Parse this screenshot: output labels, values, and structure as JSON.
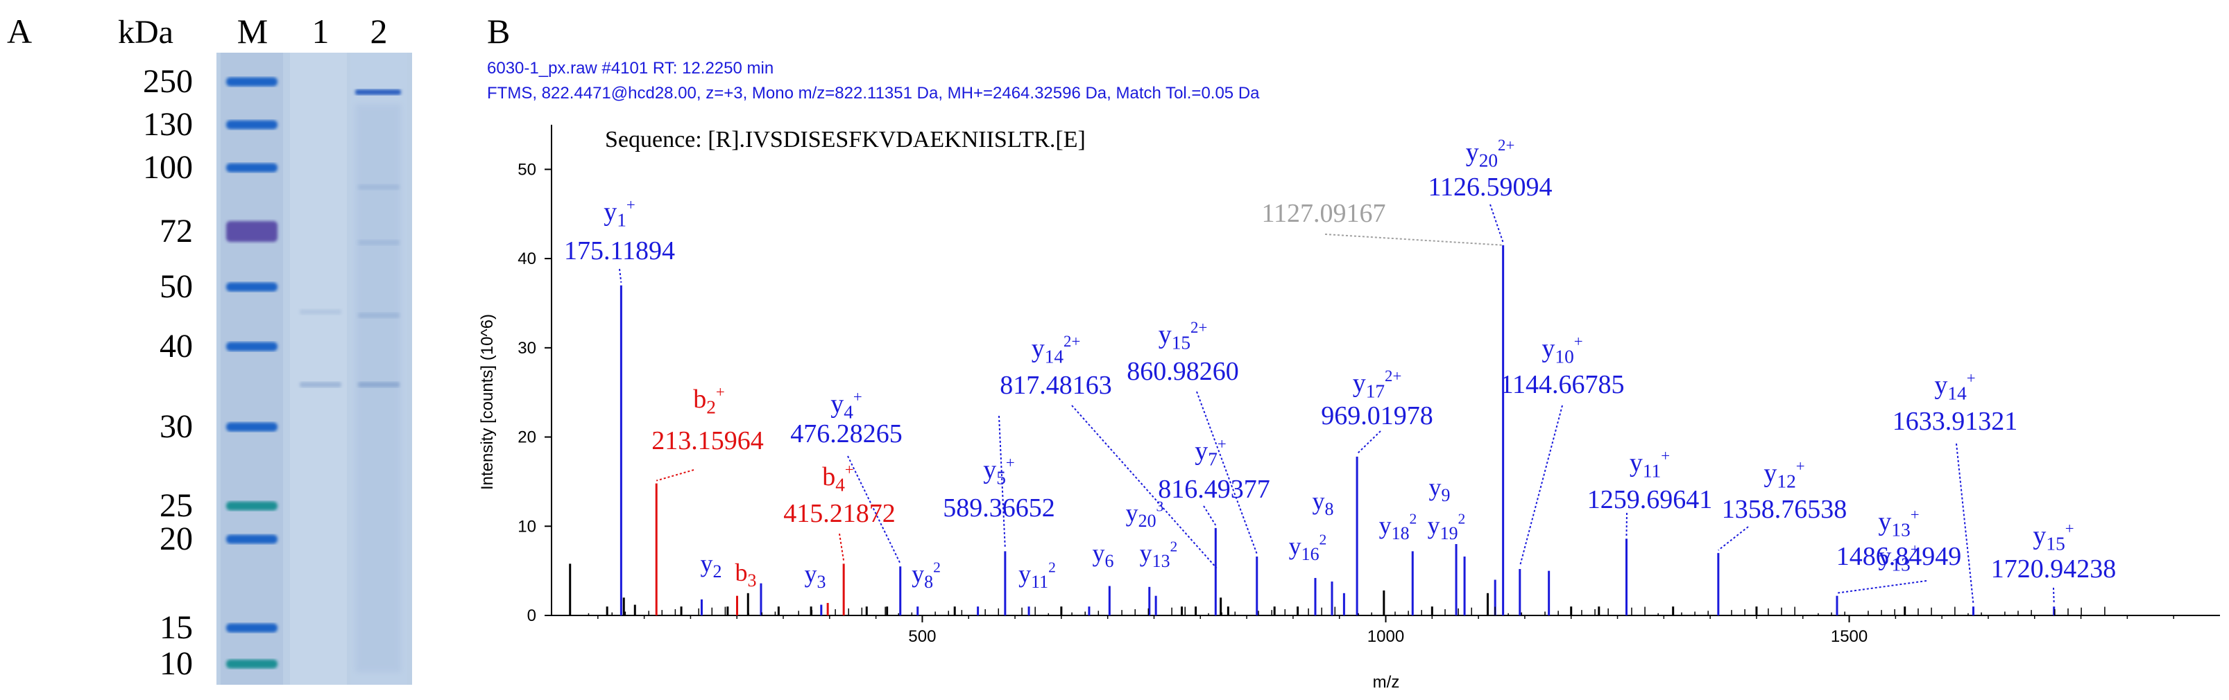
{
  "panel_a": {
    "letter": "A",
    "unit": "kDa",
    "lane_labels": [
      "M",
      "1",
      "2"
    ],
    "markers": [
      {
        "label": "250",
        "kda": 250
      },
      {
        "label": "130",
        "kda": 130
      },
      {
        "label": "100",
        "kda": 100
      },
      {
        "label": "72",
        "kda": 72
      },
      {
        "label": "50",
        "kda": 50
      },
      {
        "label": "40",
        "kda": 40
      },
      {
        "label": "30",
        "kda": 30
      },
      {
        "label": "25",
        "kda": 25
      },
      {
        "label": "20",
        "kda": 20
      },
      {
        "label": "15",
        "kda": 15
      },
      {
        "label": "10",
        "kda": 10
      }
    ],
    "colors": {
      "gel": "#b9cfe6",
      "band": "#1f63c6",
      "band_purple": "#5c4fa8",
      "band_teal": "#1d8f94"
    }
  },
  "panel_b": {
    "letter": "B",
    "header_line1": "6030-1_px.raw  #4101  RT: 12.2250 min",
    "header_line2": "FTMS, 822.4471@hcd28.00, z=+3, Mono m/z=822.11351 Da, MH+=2464.32596 Da, Match Tol.=0.05 Da",
    "sequence": "Sequence: [R].IVSDISESFKVDAEKNIISLTR.[E]",
    "colors": {
      "y_ion": "#1a1adb",
      "b_ion": "#e01010",
      "unmatched": "#000000",
      "grey": "#a0a0a0",
      "header": "#1a1adb"
    }
  },
  "chart_data": {
    "type": "bar",
    "title": "",
    "xlabel": "m/z",
    "ylabel": "Intensity [counts] (10^6)",
    "xlim": [
      100,
      1900
    ],
    "ylim": [
      0,
      55
    ],
    "xticks": [
      500,
      1000,
      1500
    ],
    "yticks": [
      0,
      10,
      20,
      30,
      40,
      50
    ],
    "grid": false,
    "peaks": [
      {
        "x": 120,
        "y": 5.8,
        "ion": "none"
      },
      {
        "x": 160,
        "y": 1.0,
        "ion": "none"
      },
      {
        "x": 175.12,
        "y": 37.0,
        "ion": "y"
      },
      {
        "x": 178,
        "y": 2.0,
        "ion": "none"
      },
      {
        "x": 190,
        "y": 1.2,
        "ion": "none"
      },
      {
        "x": 213.16,
        "y": 14.8,
        "ion": "b"
      },
      {
        "x": 240,
        "y": 1.0,
        "ion": "none"
      },
      {
        "x": 262,
        "y": 1.8,
        "ion": "y"
      },
      {
        "x": 290,
        "y": 1.0,
        "ion": "none"
      },
      {
        "x": 300.2,
        "y": 2.2,
        "ion": "b"
      },
      {
        "x": 312,
        "y": 2.5,
        "ion": "none"
      },
      {
        "x": 326,
        "y": 3.6,
        "ion": "y"
      },
      {
        "x": 345,
        "y": 1.0,
        "ion": "none"
      },
      {
        "x": 380,
        "y": 1.0,
        "ion": "none"
      },
      {
        "x": 391,
        "y": 1.2,
        "ion": "y"
      },
      {
        "x": 398,
        "y": 1.4,
        "ion": "b"
      },
      {
        "x": 415.22,
        "y": 5.8,
        "ion": "b"
      },
      {
        "x": 440,
        "y": 1.0,
        "ion": "none"
      },
      {
        "x": 462,
        "y": 1.0,
        "ion": "none"
      },
      {
        "x": 476.28,
        "y": 5.5,
        "ion": "y"
      },
      {
        "x": 495,
        "y": 1.0,
        "ion": "y"
      },
      {
        "x": 535,
        "y": 1.0,
        "ion": "none"
      },
      {
        "x": 560,
        "y": 1.0,
        "ion": "y"
      },
      {
        "x": 589.37,
        "y": 7.2,
        "ion": "y"
      },
      {
        "x": 615,
        "y": 1.0,
        "ion": "y"
      },
      {
        "x": 650,
        "y": 1.0,
        "ion": "none"
      },
      {
        "x": 680,
        "y": 1.0,
        "ion": "y"
      },
      {
        "x": 702,
        "y": 3.3,
        "ion": "y"
      },
      {
        "x": 745,
        "y": 3.2,
        "ion": "y"
      },
      {
        "x": 752,
        "y": 2.2,
        "ion": "y"
      },
      {
        "x": 780,
        "y": 1.0,
        "ion": "none"
      },
      {
        "x": 795,
        "y": 1.0,
        "ion": "none"
      },
      {
        "x": 816.49,
        "y": 9.8,
        "ion": "y"
      },
      {
        "x": 822,
        "y": 2.0,
        "ion": "none"
      },
      {
        "x": 830,
        "y": 1.0,
        "ion": "none"
      },
      {
        "x": 860.98,
        "y": 6.6,
        "ion": "y"
      },
      {
        "x": 880,
        "y": 1.0,
        "ion": "none"
      },
      {
        "x": 905,
        "y": 1.0,
        "ion": "none"
      },
      {
        "x": 924,
        "y": 4.2,
        "ion": "y"
      },
      {
        "x": 942,
        "y": 3.8,
        "ion": "y"
      },
      {
        "x": 955,
        "y": 2.5,
        "ion": "y"
      },
      {
        "x": 969.02,
        "y": 17.8,
        "ion": "y"
      },
      {
        "x": 998,
        "y": 2.8,
        "ion": "none"
      },
      {
        "x": 1029,
        "y": 7.2,
        "ion": "y"
      },
      {
        "x": 1050,
        "y": 1.0,
        "ion": "none"
      },
      {
        "x": 1076,
        "y": 8.0,
        "ion": "y"
      },
      {
        "x": 1085,
        "y": 6.6,
        "ion": "y"
      },
      {
        "x": 1110,
        "y": 2.5,
        "ion": "none"
      },
      {
        "x": 1118,
        "y": 4.0,
        "ion": "y"
      },
      {
        "x": 1126.59,
        "y": 41.5,
        "ion": "y"
      },
      {
        "x": 1144.67,
        "y": 5.2,
        "ion": "y"
      },
      {
        "x": 1176,
        "y": 5.0,
        "ion": "y"
      },
      {
        "x": 1200,
        "y": 1.0,
        "ion": "none"
      },
      {
        "x": 1230,
        "y": 1.0,
        "ion": "none"
      },
      {
        "x": 1259.7,
        "y": 8.6,
        "ion": "y"
      },
      {
        "x": 1310,
        "y": 1.0,
        "ion": "none"
      },
      {
        "x": 1358.77,
        "y": 7.0,
        "ion": "y"
      },
      {
        "x": 1400,
        "y": 1.0,
        "ion": "none"
      },
      {
        "x": 1486.85,
        "y": 2.2,
        "ion": "y"
      },
      {
        "x": 1560,
        "y": 1.0,
        "ion": "none"
      },
      {
        "x": 1633.91,
        "y": 1.0,
        "ion": "y"
      },
      {
        "x": 1720.94,
        "y": 1.0,
        "ion": "y"
      }
    ],
    "annotations": [
      {
        "ion": "y",
        "base": "y",
        "sub": "1",
        "sup": "+",
        "mz": "175.11894",
        "peak_x": 175.12,
        "peak_y": 37.0
      },
      {
        "ion": "b",
        "base": "b",
        "sub": "2",
        "sup": "+",
        "mz": "213.15964",
        "peak_x": 213.16,
        "peak_y": 14.8
      },
      {
        "ion": "y",
        "base": "y",
        "sub": "4",
        "sup": "+",
        "mz": "476.28265",
        "peak_x": 476.28,
        "peak_y": 5.5
      },
      {
        "ion": "b",
        "base": "b",
        "sub": "4",
        "sup": "+",
        "mz": "415.21872",
        "peak_x": 415.22,
        "peak_y": 5.8
      },
      {
        "ion": "y",
        "base": "y",
        "sub": "5",
        "sup": "+",
        "mz": "589.36652",
        "peak_x": 589.37,
        "peak_y": 7.2
      },
      {
        "ion": "y",
        "base": "y",
        "sub": "14",
        "sup": "2+",
        "mz": "817.48163",
        "peak_x": 817.48,
        "peak_y": 5.0
      },
      {
        "ion": "y",
        "base": "y",
        "sub": "15",
        "sup": "2+",
        "mz": "860.98260",
        "peak_x": 860.98,
        "peak_y": 6.6
      },
      {
        "ion": "y",
        "base": "y",
        "sub": "7",
        "sup": "+",
        "mz": "816.49377",
        "peak_x": 816.49,
        "peak_y": 9.8
      },
      {
        "ion": "y",
        "base": "y",
        "sub": "17",
        "sup": "2+",
        "mz": "969.01978",
        "peak_x": 969.02,
        "peak_y": 17.8
      },
      {
        "ion": "y",
        "base": "y",
        "sub": "20",
        "sup": "2+",
        "mz": "1126.59094",
        "peak_x": 1126.59,
        "peak_y": 41.5
      },
      {
        "ion": "grey",
        "base": "",
        "sub": "",
        "sup": "",
        "mz": "1127.09167",
        "peak_x": 1127.09,
        "peak_y": 41.5
      },
      {
        "ion": "y",
        "base": "y",
        "sub": "10",
        "sup": "+",
        "mz": "1144.66785",
        "peak_x": 1144.67,
        "peak_y": 5.2
      },
      {
        "ion": "y",
        "base": "y",
        "sub": "11",
        "sup": "+",
        "mz": "1259.69641",
        "peak_x": 1259.7,
        "peak_y": 8.6
      },
      {
        "ion": "y",
        "base": "y",
        "sub": "12",
        "sup": "+",
        "mz": "1358.76538",
        "peak_x": 1358.77,
        "peak_y": 7.0
      },
      {
        "ion": "y",
        "base": "y",
        "sub": "13",
        "sup": "+",
        "mz": "1486.84949",
        "peak_x": 1486.85,
        "peak_y": 2.2
      },
      {
        "ion": "y",
        "base": "y",
        "sub": "14",
        "sup": "+",
        "mz": "1633.91321",
        "peak_x": 1633.91,
        "peak_y": 1.0
      },
      {
        "ion": "y",
        "base": "y",
        "sub": "15",
        "sup": "+",
        "mz": "1720.94238",
        "peak_x": 1720.94,
        "peak_y": 1.0
      }
    ],
    "small_labels": [
      {
        "ion": "y",
        "base": "y",
        "sub": "2",
        "sup": ""
      },
      {
        "ion": "b",
        "base": "b",
        "sub": "3",
        "sup": ""
      },
      {
        "ion": "y",
        "base": "y",
        "sub": "3",
        "sup": ""
      },
      {
        "ion": "y",
        "base": "y",
        "sub": "8",
        "sup": "2"
      },
      {
        "ion": "y",
        "base": "y",
        "sub": "11",
        "sup": "2"
      },
      {
        "ion": "y",
        "base": "y",
        "sub": "6",
        "sup": ""
      },
      {
        "ion": "y",
        "base": "y",
        "sub": "20",
        "sup": "3"
      },
      {
        "ion": "y",
        "base": "y",
        "sub": "13",
        "sup": "2"
      },
      {
        "ion": "y",
        "base": "y",
        "sub": "16",
        "sup": "2"
      },
      {
        "ion": "y",
        "base": "y",
        "sub": "8",
        "sup": ""
      },
      {
        "ion": "y",
        "base": "y",
        "sub": "18",
        "sup": "2"
      },
      {
        "ion": "y",
        "base": "y",
        "sub": "9",
        "sup": ""
      },
      {
        "ion": "y",
        "base": "y",
        "sub": "19",
        "sup": "2"
      }
    ]
  }
}
